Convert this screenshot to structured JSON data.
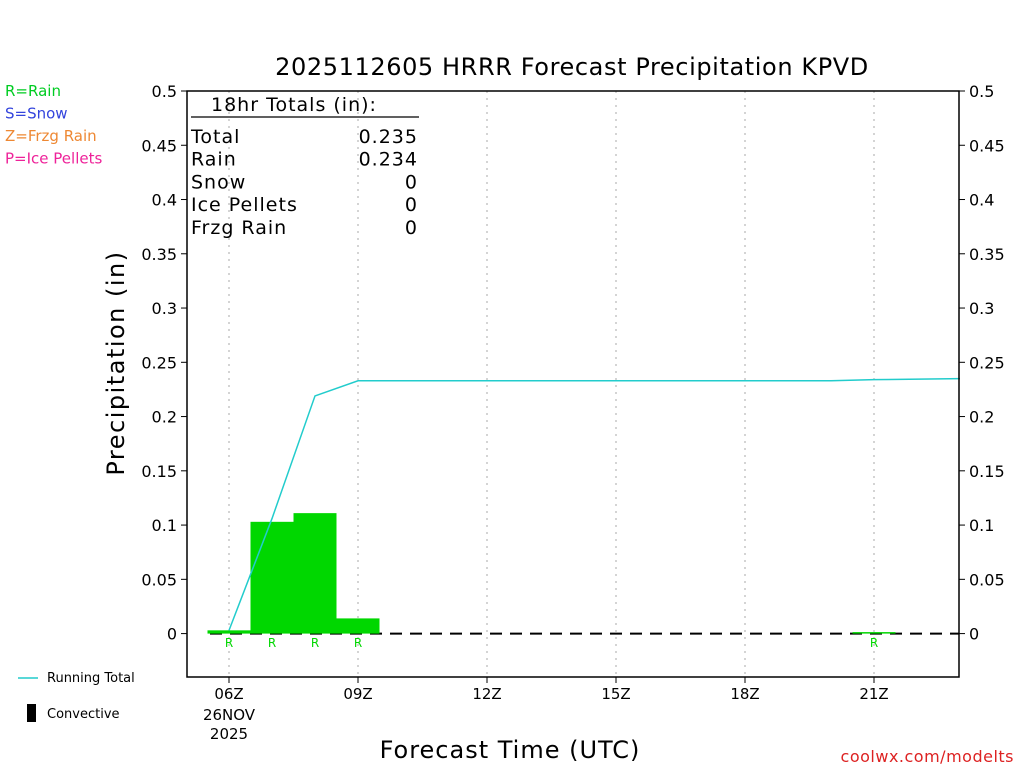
{
  "chart_data": {
    "type": "bar",
    "title": "2025112605 HRRR Forecast Precipitation KPVD",
    "xlabel": "Forecast Time (UTC)",
    "ylabel": "Precipitation (in)",
    "ylim": [
      -0.04,
      0.5
    ],
    "y_ticks": [
      "0.5",
      "0.45",
      "0.4",
      "0.35",
      "0.3",
      "0.25",
      "0.2",
      "0.15",
      "0.1",
      "0.05",
      "0"
    ],
    "x_ticks": [
      {
        "hour": 0,
        "label": "06Z"
      },
      {
        "hour": 3,
        "label": "09Z"
      },
      {
        "hour": 6,
        "label": "12Z"
      },
      {
        "hour": 9,
        "label": "15Z"
      },
      {
        "hour": 12,
        "label": "18Z"
      },
      {
        "hour": 15,
        "label": "21Z"
      }
    ],
    "date_label": "26NOV",
    "year_label": "2025",
    "grid": "vertical dotted",
    "hourly_bars": [
      {
        "hour": 0,
        "value": 0.003,
        "type": "R"
      },
      {
        "hour": 1,
        "value": 0.103,
        "type": "R"
      },
      {
        "hour": 2,
        "value": 0.111,
        "type": "R"
      },
      {
        "hour": 3,
        "value": 0.014,
        "type": "R"
      },
      {
        "hour": 15,
        "value": 0.001,
        "type": "R"
      }
    ],
    "running_total": [
      {
        "hour": 0,
        "value": 0.003
      },
      {
        "hour": 1,
        "value": 0.106
      },
      {
        "hour": 2,
        "value": 0.219
      },
      {
        "hour": 3,
        "value": 0.233
      },
      {
        "hour": 14,
        "value": 0.233
      },
      {
        "hour": 15,
        "value": 0.234
      },
      {
        "hour": 17,
        "value": 0.235
      }
    ],
    "totals_box": {
      "header": "18hr Totals (in):",
      "rows": [
        {
          "label": "Total",
          "value": "0.235"
        },
        {
          "label": "Rain",
          "value": "0.234"
        },
        {
          "label": "Snow",
          "value": "0"
        },
        {
          "label": "Ice Pellets",
          "value": "0"
        },
        {
          "label": "Frzg Rain",
          "value": "0"
        }
      ]
    },
    "type_legend": [
      {
        "text": "R=Rain",
        "color": "#00cc22"
      },
      {
        "text": "S=Snow",
        "color": "#3344dd"
      },
      {
        "text": "Z=Frzg Rain",
        "color": "#ee8833"
      },
      {
        "text": "P=Ice Pellets",
        "color": "#ee2299"
      }
    ],
    "bottom_legend": [
      {
        "text": "Running Total",
        "kind": "line",
        "color": "#22cccc"
      },
      {
        "text": "Convective",
        "kind": "bar",
        "color": "#000000"
      }
    ],
    "footer": "coolwx.com/modelts",
    "colors": {
      "rain": "#00d700",
      "running_total": "#22cccc",
      "footer": "#dd2222",
      "axis": "#000000",
      "grid": "#aaaaaa"
    }
  }
}
